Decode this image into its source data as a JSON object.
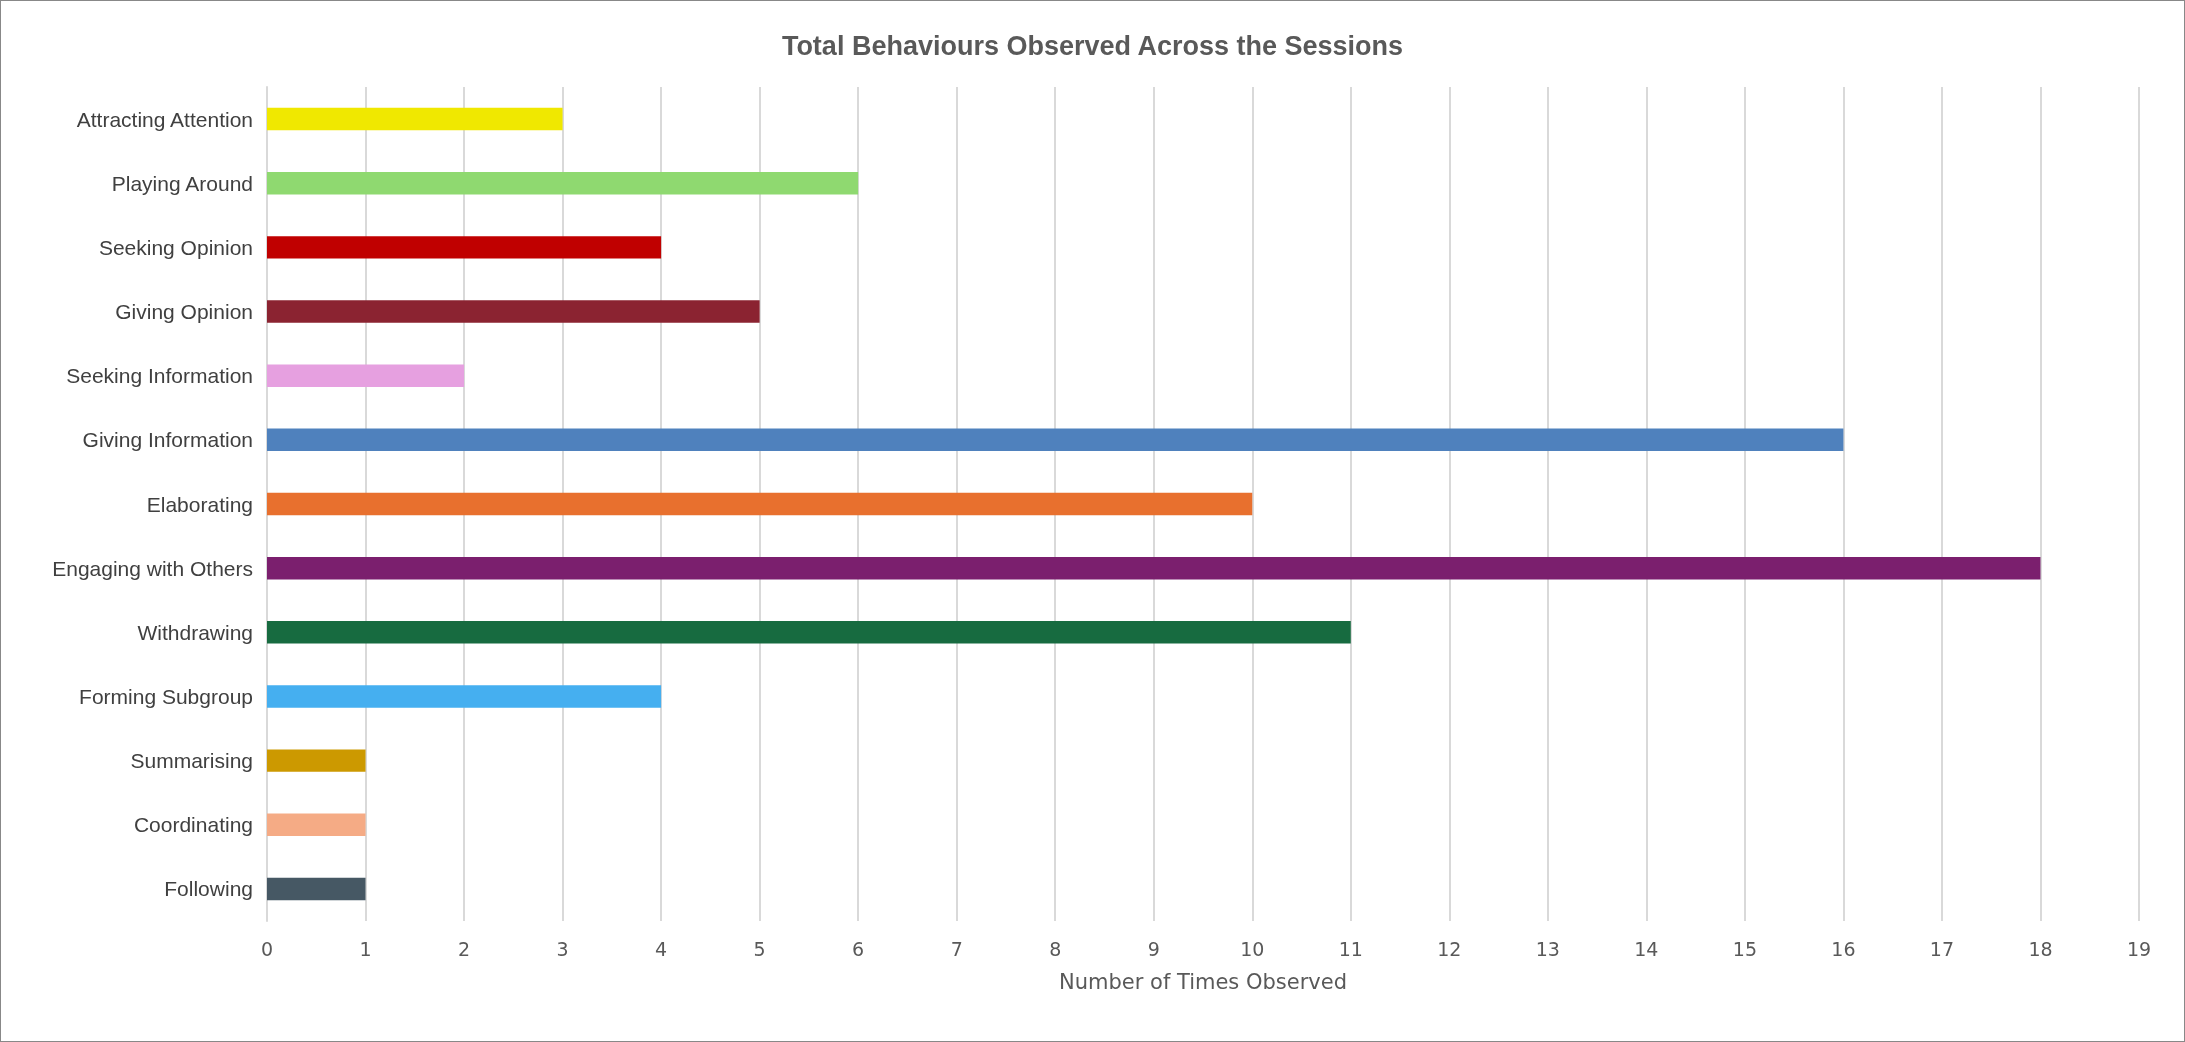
{
  "chart_data": {
    "type": "bar",
    "orientation": "horizontal",
    "title": "Total Behaviours Observed Across the Sessions",
    "xlabel": "Number of Times Observed",
    "categories": [
      "Attracting Attention",
      "Playing Around",
      "Seeking Opinion",
      "Giving Opinion",
      "Seeking Information",
      "Giving Information",
      "Elaborating",
      "Engaging with Others",
      "Withdrawing",
      "Forming Subgroup",
      "Summarising",
      "Coordinating",
      "Following"
    ],
    "values": [
      3,
      6,
      4,
      5,
      2,
      16,
      10,
      18,
      11,
      4,
      1,
      1,
      1
    ],
    "colors": [
      "#f0e800",
      "#8fd970",
      "#c00000",
      "#8b2331",
      "#e6a0e0",
      "#4f81bd",
      "#e8702e",
      "#7b1f6e",
      "#176b40",
      "#45aff0",
      "#cc9900",
      "#f5ab85",
      "#465864"
    ],
    "xlim": [
      0,
      19
    ],
    "xticks": [
      0,
      1,
      2,
      3,
      4,
      5,
      6,
      7,
      8,
      9,
      10,
      11,
      12,
      13,
      14,
      15,
      16,
      17,
      18,
      19
    ],
    "grid": "x"
  }
}
